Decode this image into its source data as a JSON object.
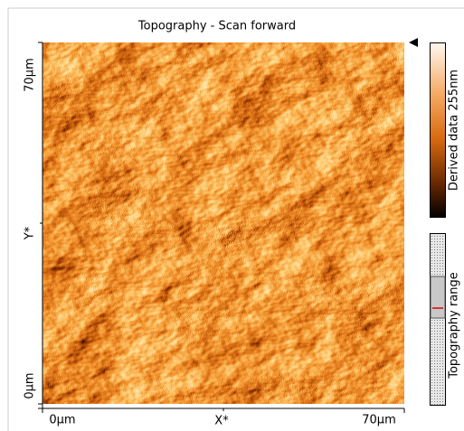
{
  "title": "Topography - Scan forward",
  "x_axis": {
    "start": "0µm",
    "name": "X*",
    "end": "70µm"
  },
  "y_axis": {
    "end": "70µm",
    "name": "Y*",
    "start": "0µm"
  },
  "color_bar": {
    "label": "Derived data 255nm"
  },
  "range_bar": {
    "label": "Topography range"
  }
}
